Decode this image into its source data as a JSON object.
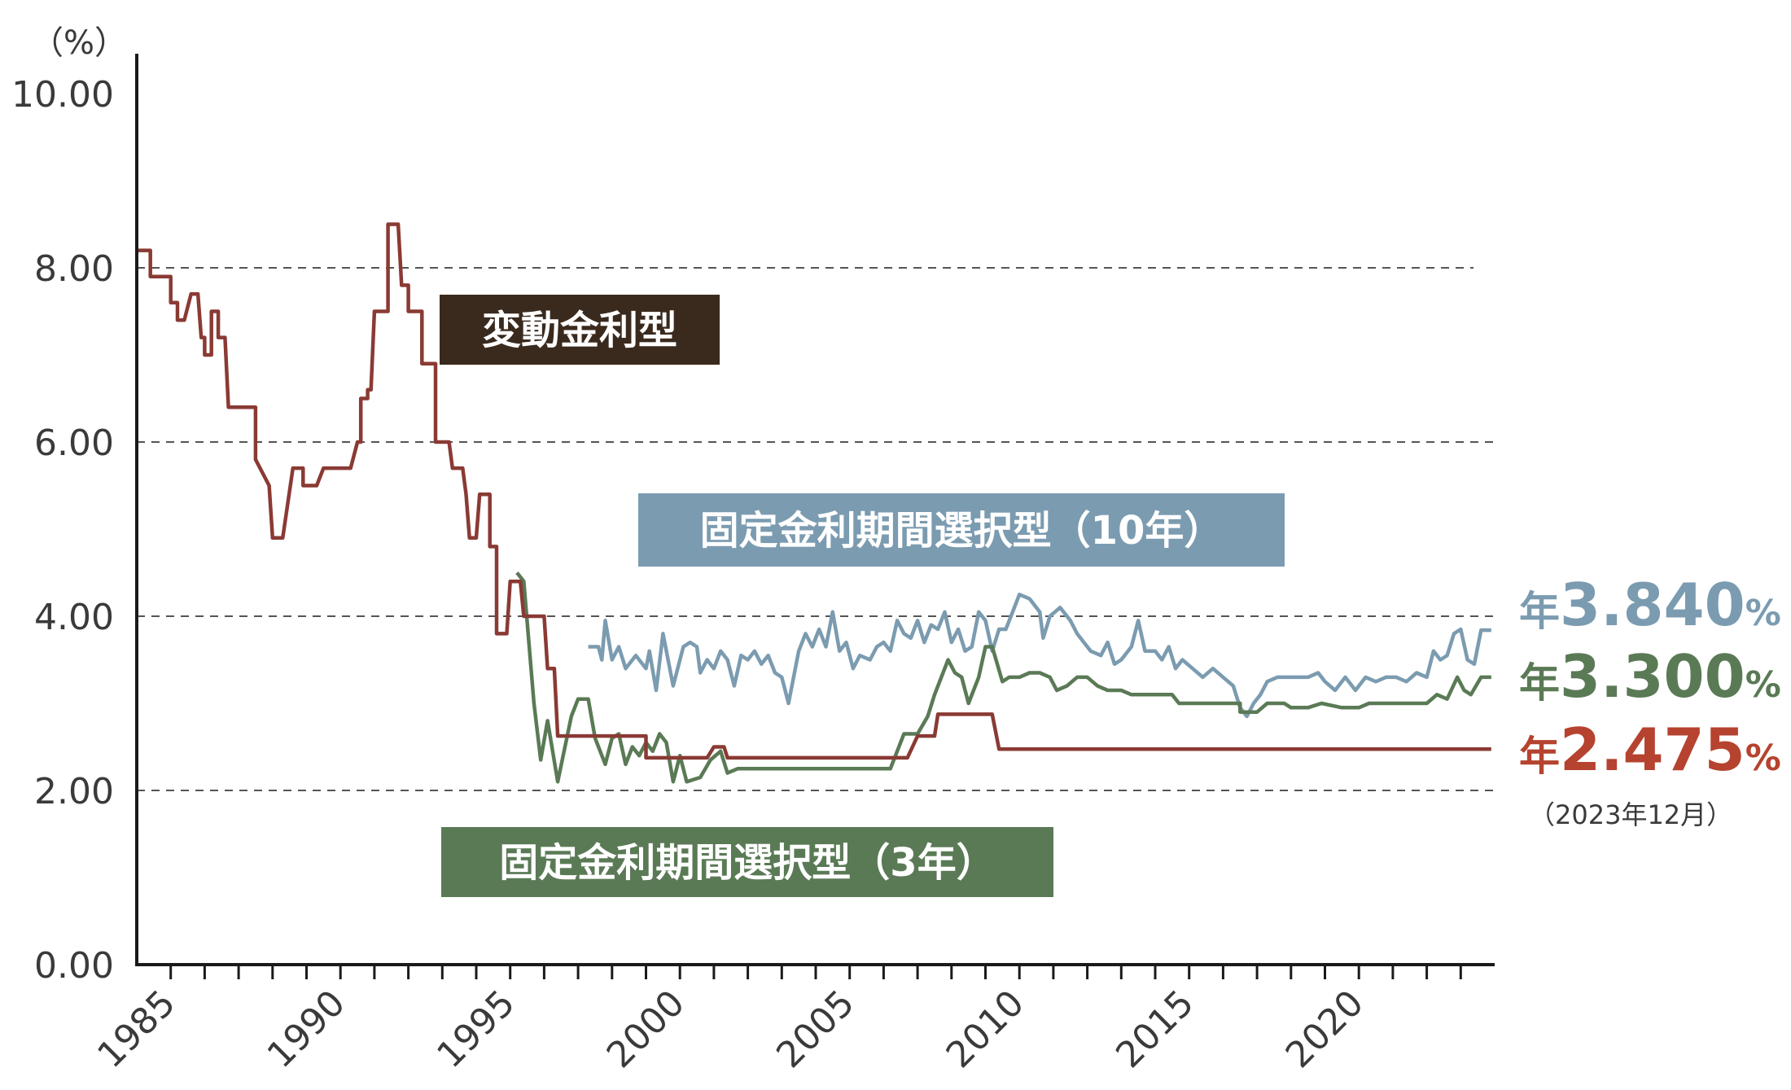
{
  "chart_data": {
    "type": "line",
    "unit": "（%）",
    "ylim": [
      0,
      10
    ],
    "yticks": [
      "0.00",
      "2.00",
      "4.00",
      "6.00",
      "8.00",
      "10.00"
    ],
    "xlim": [
      1984,
      2024
    ],
    "xticks": [
      "1985",
      "1990",
      "1995",
      "2000",
      "2005",
      "2010",
      "2015",
      "2020"
    ],
    "grid": "dashed horizontal at 2, 4, 6, 8",
    "note": "（2023年12月）",
    "series": [
      {
        "name": "変動金利型",
        "color": "#8a3a34",
        "label_color": "#3a2a1e",
        "end_label_prefix": "年",
        "end_label_value": "2.475",
        "end_label_suffix": "%",
        "end_label_color": "#b5432f",
        "points": [
          [
            1984.0,
            8.2
          ],
          [
            1984.4,
            8.2
          ],
          [
            1984.4,
            7.9
          ],
          [
            1985.0,
            7.9
          ],
          [
            1985.0,
            7.6
          ],
          [
            1985.2,
            7.6
          ],
          [
            1985.2,
            7.4
          ],
          [
            1985.4,
            7.4
          ],
          [
            1985.6,
            7.7
          ],
          [
            1985.8,
            7.7
          ],
          [
            1985.9,
            7.2
          ],
          [
            1986.0,
            7.2
          ],
          [
            1986.0,
            7.0
          ],
          [
            1986.2,
            7.0
          ],
          [
            1986.2,
            7.5
          ],
          [
            1986.4,
            7.5
          ],
          [
            1986.4,
            7.2
          ],
          [
            1986.6,
            7.2
          ],
          [
            1986.7,
            6.4
          ],
          [
            1987.5,
            6.4
          ],
          [
            1987.5,
            5.8
          ],
          [
            1987.9,
            5.5
          ],
          [
            1988.0,
            4.9
          ],
          [
            1988.3,
            4.9
          ],
          [
            1988.6,
            5.7
          ],
          [
            1988.9,
            5.7
          ],
          [
            1988.9,
            5.5
          ],
          [
            1989.3,
            5.5
          ],
          [
            1989.5,
            5.7
          ],
          [
            1990.0,
            5.7
          ],
          [
            1990.3,
            5.7
          ],
          [
            1990.5,
            6.0
          ],
          [
            1990.6,
            6.0
          ],
          [
            1990.6,
            6.5
          ],
          [
            1990.8,
            6.5
          ],
          [
            1990.8,
            6.6
          ],
          [
            1990.9,
            6.6
          ],
          [
            1991.0,
            7.5
          ],
          [
            1991.4,
            7.5
          ],
          [
            1991.4,
            8.5
          ],
          [
            1991.7,
            8.5
          ],
          [
            1991.8,
            7.8
          ],
          [
            1992.0,
            7.8
          ],
          [
            1992.0,
            7.5
          ],
          [
            1992.4,
            7.5
          ],
          [
            1992.4,
            6.9
          ],
          [
            1992.8,
            6.9
          ],
          [
            1992.8,
            6.0
          ],
          [
            1993.2,
            6.0
          ],
          [
            1993.3,
            5.7
          ],
          [
            1993.6,
            5.7
          ],
          [
            1993.7,
            5.4
          ],
          [
            1993.8,
            4.9
          ],
          [
            1994.0,
            4.9
          ],
          [
            1994.1,
            5.4
          ],
          [
            1994.4,
            5.4
          ],
          [
            1994.4,
            4.8
          ],
          [
            1994.6,
            4.8
          ],
          [
            1994.6,
            3.8
          ],
          [
            1994.9,
            3.8
          ],
          [
            1995.0,
            4.4
          ],
          [
            1995.3,
            4.4
          ],
          [
            1995.4,
            4.0
          ],
          [
            1996.0,
            4.0
          ],
          [
            1996.1,
            3.4
          ],
          [
            1996.3,
            3.4
          ],
          [
            1996.4,
            2.625
          ],
          [
            1999.0,
            2.625
          ],
          [
            1999.0,
            2.375
          ],
          [
            2000.8,
            2.375
          ],
          [
            2001.0,
            2.5
          ],
          [
            2001.3,
            2.5
          ],
          [
            2001.4,
            2.375
          ],
          [
            2006.7,
            2.375
          ],
          [
            2007.0,
            2.625
          ],
          [
            2007.5,
            2.625
          ],
          [
            2007.6,
            2.875
          ],
          [
            2009.2,
            2.875
          ],
          [
            2009.4,
            2.475
          ],
          [
            2023.9,
            2.475
          ]
        ]
      },
      {
        "name": "固定金利期間選択型（10年）",
        "color": "#7b9bb0",
        "label_color": "#7b9bb0",
        "end_label_prefix": "年",
        "end_label_value": "3.840",
        "end_label_suffix": "%",
        "end_label_color": "#7b9bb0",
        "points": [
          [
            1997.3,
            3.65
          ],
          [
            1997.6,
            3.65
          ],
          [
            1997.7,
            3.5
          ],
          [
            1997.8,
            3.95
          ],
          [
            1998.0,
            3.5
          ],
          [
            1998.2,
            3.65
          ],
          [
            1998.4,
            3.4
          ],
          [
            1998.7,
            3.55
          ],
          [
            1999.0,
            3.4
          ],
          [
            1999.1,
            3.6
          ],
          [
            1999.3,
            3.15
          ],
          [
            1999.5,
            3.8
          ],
          [
            1999.8,
            3.2
          ],
          [
            2000.1,
            3.65
          ],
          [
            2000.3,
            3.7
          ],
          [
            2000.5,
            3.65
          ],
          [
            2000.6,
            3.35
          ],
          [
            2000.8,
            3.5
          ],
          [
            2001.0,
            3.4
          ],
          [
            2001.2,
            3.6
          ],
          [
            2001.4,
            3.5
          ],
          [
            2001.6,
            3.2
          ],
          [
            2001.8,
            3.55
          ],
          [
            2002.0,
            3.5
          ],
          [
            2002.2,
            3.6
          ],
          [
            2002.4,
            3.45
          ],
          [
            2002.6,
            3.55
          ],
          [
            2002.8,
            3.35
          ],
          [
            2003.0,
            3.3
          ],
          [
            2003.2,
            3.0
          ],
          [
            2003.5,
            3.6
          ],
          [
            2003.7,
            3.8
          ],
          [
            2003.9,
            3.65
          ],
          [
            2004.1,
            3.85
          ],
          [
            2004.3,
            3.65
          ],
          [
            2004.5,
            4.05
          ],
          [
            2004.7,
            3.6
          ],
          [
            2004.9,
            3.7
          ],
          [
            2005.1,
            3.4
          ],
          [
            2005.3,
            3.55
          ],
          [
            2005.6,
            3.5
          ],
          [
            2005.8,
            3.65
          ],
          [
            2006.0,
            3.7
          ],
          [
            2006.2,
            3.6
          ],
          [
            2006.4,
            3.95
          ],
          [
            2006.6,
            3.8
          ],
          [
            2006.8,
            3.75
          ],
          [
            2007.0,
            3.95
          ],
          [
            2007.2,
            3.7
          ],
          [
            2007.4,
            3.9
          ],
          [
            2007.6,
            3.85
          ],
          [
            2007.8,
            4.05
          ],
          [
            2008.0,
            3.7
          ],
          [
            2008.2,
            3.85
          ],
          [
            2008.4,
            3.6
          ],
          [
            2008.6,
            3.65
          ],
          [
            2008.8,
            4.05
          ],
          [
            2009.0,
            3.95
          ],
          [
            2009.2,
            3.6
          ],
          [
            2009.4,
            3.85
          ],
          [
            2009.6,
            3.85
          ],
          [
            2009.8,
            4.05
          ],
          [
            2010.0,
            4.25
          ],
          [
            2010.3,
            4.2
          ],
          [
            2010.6,
            4.05
          ],
          [
            2010.7,
            3.75
          ],
          [
            2010.9,
            4.0
          ],
          [
            2011.2,
            4.1
          ],
          [
            2011.5,
            3.95
          ],
          [
            2011.7,
            3.8
          ],
          [
            2011.9,
            3.7
          ],
          [
            2012.1,
            3.6
          ],
          [
            2012.4,
            3.55
          ],
          [
            2012.6,
            3.7
          ],
          [
            2012.8,
            3.45
          ],
          [
            2013.0,
            3.5
          ],
          [
            2013.3,
            3.65
          ],
          [
            2013.5,
            3.95
          ],
          [
            2013.7,
            3.6
          ],
          [
            2014.0,
            3.6
          ],
          [
            2014.2,
            3.5
          ],
          [
            2014.4,
            3.65
          ],
          [
            2014.6,
            3.4
          ],
          [
            2014.8,
            3.5
          ],
          [
            2015.1,
            3.4
          ],
          [
            2015.4,
            3.3
          ],
          [
            2015.7,
            3.4
          ],
          [
            2016.0,
            3.3
          ],
          [
            2016.3,
            3.2
          ],
          [
            2016.5,
            2.95
          ],
          [
            2016.7,
            2.85
          ],
          [
            2016.9,
            3.0
          ],
          [
            2017.1,
            3.1
          ],
          [
            2017.3,
            3.25
          ],
          [
            2017.6,
            3.3
          ],
          [
            2017.9,
            3.3
          ],
          [
            2018.2,
            3.3
          ],
          [
            2018.5,
            3.3
          ],
          [
            2018.8,
            3.35
          ],
          [
            2019.0,
            3.25
          ],
          [
            2019.3,
            3.15
          ],
          [
            2019.6,
            3.3
          ],
          [
            2019.9,
            3.15
          ],
          [
            2020.2,
            3.3
          ],
          [
            2020.5,
            3.25
          ],
          [
            2020.8,
            3.3
          ],
          [
            2021.1,
            3.3
          ],
          [
            2021.4,
            3.25
          ],
          [
            2021.7,
            3.35
          ],
          [
            2022.0,
            3.3
          ],
          [
            2022.2,
            3.6
          ],
          [
            2022.4,
            3.5
          ],
          [
            2022.6,
            3.55
          ],
          [
            2022.8,
            3.8
          ],
          [
            2023.0,
            3.85
          ],
          [
            2023.2,
            3.5
          ],
          [
            2023.4,
            3.45
          ],
          [
            2023.6,
            3.84
          ],
          [
            2023.9,
            3.84
          ]
        ]
      },
      {
        "name": "固定金利期間選択型（3年）",
        "color": "#5a7a55",
        "label_color": "#5a7a55",
        "end_label_prefix": "年",
        "end_label_value": "3.300",
        "end_label_suffix": "%",
        "end_label_color": "#5a7a55",
        "points": [
          [
            1995.2,
            4.5
          ],
          [
            1995.4,
            4.4
          ],
          [
            1995.7,
            3.0
          ],
          [
            1995.9,
            2.35
          ],
          [
            1996.1,
            2.8
          ],
          [
            1996.4,
            2.1
          ],
          [
            1996.8,
            2.85
          ],
          [
            1997.0,
            3.05
          ],
          [
            1997.3,
            3.05
          ],
          [
            1997.5,
            2.6
          ],
          [
            1997.8,
            2.3
          ],
          [
            1998.0,
            2.6
          ],
          [
            1998.2,
            2.65
          ],
          [
            1998.4,
            2.3
          ],
          [
            1998.6,
            2.5
          ],
          [
            1998.8,
            2.4
          ],
          [
            1999.0,
            2.55
          ],
          [
            1999.2,
            2.45
          ],
          [
            1999.4,
            2.65
          ],
          [
            1999.6,
            2.55
          ],
          [
            1999.8,
            2.1
          ],
          [
            2000.0,
            2.4
          ],
          [
            2000.2,
            2.1
          ],
          [
            2000.6,
            2.15
          ],
          [
            2000.9,
            2.35
          ],
          [
            2001.2,
            2.45
          ],
          [
            2001.4,
            2.2
          ],
          [
            2001.7,
            2.25
          ],
          [
            2004.0,
            2.25
          ],
          [
            2005.0,
            2.25
          ],
          [
            2006.2,
            2.25
          ],
          [
            2006.4,
            2.45
          ],
          [
            2006.6,
            2.65
          ],
          [
            2007.0,
            2.65
          ],
          [
            2007.3,
            2.85
          ],
          [
            2007.5,
            3.1
          ],
          [
            2007.7,
            3.3
          ],
          [
            2007.9,
            3.5
          ],
          [
            2008.1,
            3.35
          ],
          [
            2008.3,
            3.3
          ],
          [
            2008.5,
            3.0
          ],
          [
            2008.8,
            3.3
          ],
          [
            2009.0,
            3.65
          ],
          [
            2009.2,
            3.65
          ],
          [
            2009.5,
            3.25
          ],
          [
            2009.7,
            3.3
          ],
          [
            2010.0,
            3.3
          ],
          [
            2010.3,
            3.35
          ],
          [
            2010.6,
            3.35
          ],
          [
            2010.9,
            3.3
          ],
          [
            2011.1,
            3.15
          ],
          [
            2011.4,
            3.2
          ],
          [
            2011.7,
            3.3
          ],
          [
            2012.0,
            3.3
          ],
          [
            2012.3,
            3.2
          ],
          [
            2012.6,
            3.15
          ],
          [
            2013.0,
            3.15
          ],
          [
            2013.3,
            3.1
          ],
          [
            2014.0,
            3.1
          ],
          [
            2014.5,
            3.1
          ],
          [
            2014.7,
            3.0
          ],
          [
            2015.5,
            3.0
          ],
          [
            2016.0,
            3.0
          ],
          [
            2016.5,
            3.0
          ],
          [
            2016.5,
            2.9
          ],
          [
            2017.0,
            2.9
          ],
          [
            2017.3,
            3.0
          ],
          [
            2017.8,
            3.0
          ],
          [
            2018.0,
            2.95
          ],
          [
            2018.5,
            2.95
          ],
          [
            2018.9,
            3.0
          ],
          [
            2019.5,
            2.95
          ],
          [
            2020.0,
            2.95
          ],
          [
            2020.3,
            3.0
          ],
          [
            2021.0,
            3.0
          ],
          [
            2022.0,
            3.0
          ],
          [
            2022.3,
            3.1
          ],
          [
            2022.6,
            3.05
          ],
          [
            2022.9,
            3.3
          ],
          [
            2023.1,
            3.15
          ],
          [
            2023.3,
            3.1
          ],
          [
            2023.6,
            3.3
          ],
          [
            2023.9,
            3.3
          ]
        ]
      }
    ]
  }
}
